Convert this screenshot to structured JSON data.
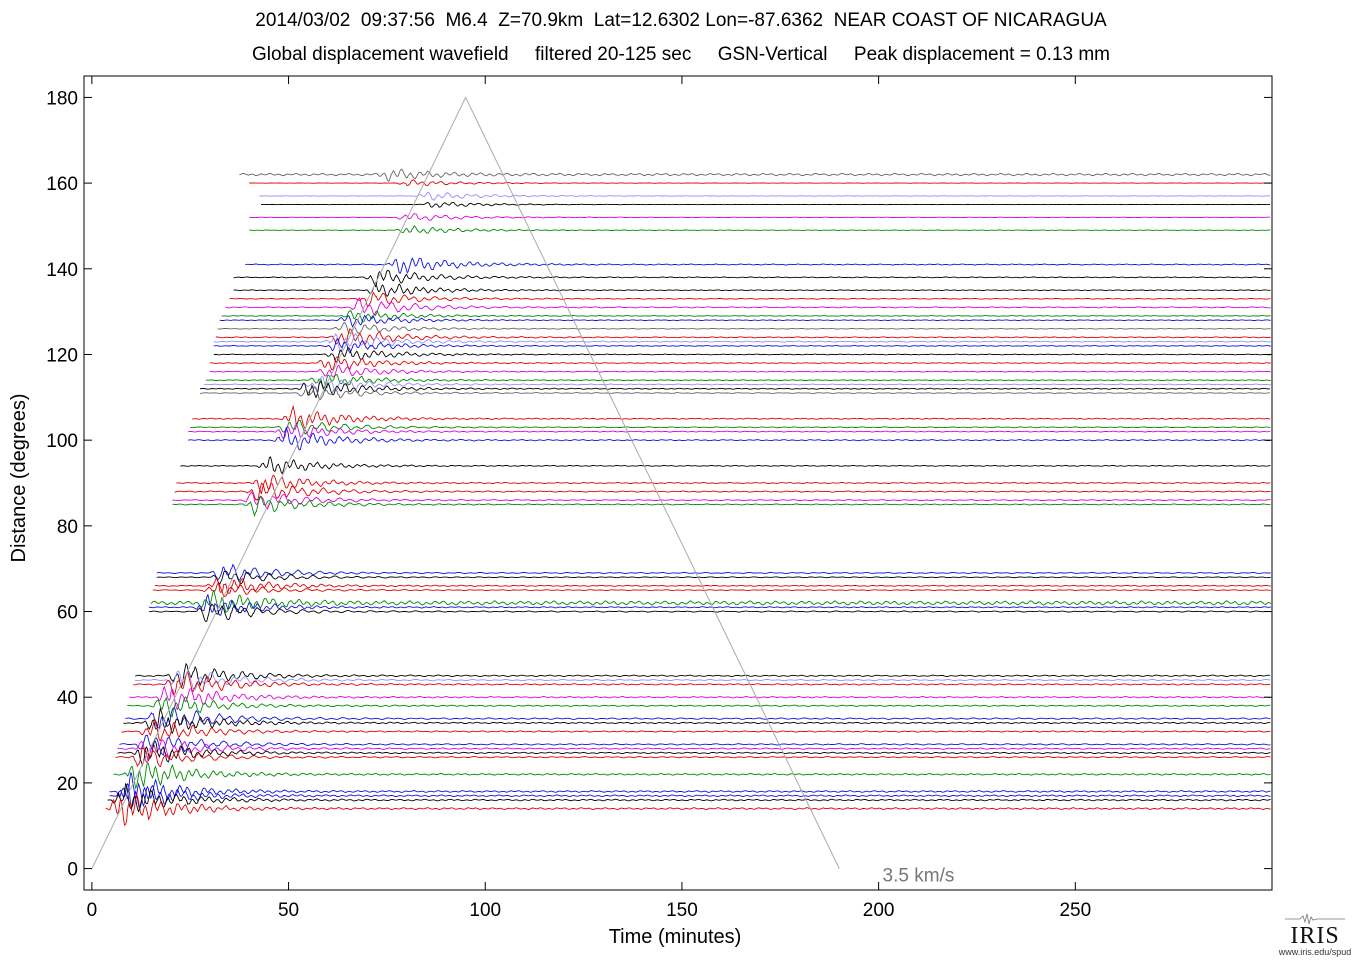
{
  "header": {
    "line1": "2014/03/02  09:37:56  M6.4  Z=70.9km  Lat=12.6302 Lon=-87.6362  NEAR COAST OF NICARAGUA",
    "line2": "Global displacement wavefield     filtered 20-125 sec     GSN-Vertical     Peak displacement = 0.13 mm"
  },
  "logo": {
    "text": "IRIS",
    "url": "www.iris.edu/spud"
  },
  "chart_data": {
    "type": "line",
    "title": "2014/03/02  09:37:56  M6.4  Z=70.9km  Lat=12.6302 Lon=-87.6362  NEAR COAST OF NICARAGUA",
    "subtitle": "Global displacement wavefield     filtered 20-125 sec     GSN-Vertical     Peak displacement = 0.13 mm",
    "xlabel": "Time (minutes)",
    "ylabel": "Distance (degrees)",
    "xlim": [
      -2,
      300
    ],
    "ylim": [
      -5,
      185
    ],
    "xticks": [
      0,
      50,
      100,
      150,
      200,
      250
    ],
    "yticks": [
      0,
      20,
      40,
      60,
      80,
      100,
      120,
      140,
      160,
      180
    ],
    "grid": false,
    "velocity_line": {
      "label": "3.5 km/s",
      "points": [
        [
          0,
          0
        ],
        [
          95,
          180
        ],
        [
          190,
          0
        ]
      ],
      "color": "#aaaaaa"
    },
    "series_colors": [
      "#000000",
      "#e00000",
      "#1010e0",
      "#008800",
      "#e000e0",
      "#9090ff",
      "#666666"
    ],
    "traces": [
      {
        "distance": 162,
        "color": "#666666",
        "arrival": 75,
        "amp": 5,
        "noise": 1.0
      },
      {
        "distance": 160,
        "color": "#e00000",
        "arrival": 80,
        "amp": 3
      },
      {
        "distance": 157,
        "color": "#9090ff",
        "arrival": 85,
        "amp": 4
      },
      {
        "distance": 155,
        "color": "#000000",
        "arrival": 86,
        "amp": 3
      },
      {
        "distance": 152,
        "color": "#e000e0",
        "arrival": 80,
        "amp": 4
      },
      {
        "distance": 149,
        "color": "#008800",
        "arrival": 80,
        "amp": 4
      },
      {
        "distance": 141,
        "color": "#1010e0",
        "arrival": 78,
        "amp": 9
      },
      {
        "distance": 138,
        "color": "#000000",
        "arrival": 72,
        "amp": 8
      },
      {
        "distance": 135,
        "color": "#000000",
        "arrival": 72,
        "amp": 7
      },
      {
        "distance": 133,
        "color": "#e00000",
        "arrival": 70,
        "amp": 7
      },
      {
        "distance": 131,
        "color": "#e000e0",
        "arrival": 68,
        "amp": 9
      },
      {
        "distance": 129,
        "color": "#008800",
        "arrival": 66,
        "amp": 6
      },
      {
        "distance": 128,
        "color": "#1010e0",
        "arrival": 65,
        "amp": 6
      },
      {
        "distance": 126,
        "color": "#666666",
        "arrival": 64,
        "amp": 6
      },
      {
        "distance": 124,
        "color": "#e00000",
        "arrival": 63,
        "amp": 9
      },
      {
        "distance": 123,
        "color": "#9090ff",
        "arrival": 62,
        "amp": 9
      },
      {
        "distance": 122,
        "color": "#1010e0",
        "arrival": 62,
        "amp": 7
      },
      {
        "distance": 120,
        "color": "#000000",
        "arrival": 62,
        "amp": 7
      },
      {
        "distance": 118,
        "color": "#e00000",
        "arrival": 60,
        "amp": 7
      },
      {
        "distance": 116,
        "color": "#e000e0",
        "arrival": 60,
        "amp": 7
      },
      {
        "distance": 114,
        "color": "#008800",
        "arrival": 58,
        "amp": 7
      },
      {
        "distance": 113,
        "color": "#9090ff",
        "arrival": 57,
        "amp": 8
      },
      {
        "distance": 112,
        "color": "#000000",
        "arrival": 55,
        "amp": 9
      },
      {
        "distance": 111,
        "color": "#666666",
        "arrival": 55,
        "amp": 7
      },
      {
        "distance": 105,
        "color": "#e00000",
        "arrival": 51,
        "amp": 10
      },
      {
        "distance": 103,
        "color": "#008800",
        "arrival": 50,
        "amp": 8
      },
      {
        "distance": 102,
        "color": "#e000e0",
        "arrival": 49,
        "amp": 8
      },
      {
        "distance": 100,
        "color": "#1010e0",
        "arrival": 49,
        "amp": 10
      },
      {
        "distance": 94,
        "color": "#000000",
        "arrival": 45,
        "amp": 8
      },
      {
        "distance": 90,
        "color": "#e00000",
        "arrival": 43,
        "amp": 9
      },
      {
        "distance": 88,
        "color": "#e00000",
        "arrival": 42,
        "amp": 10
      },
      {
        "distance": 86,
        "color": "#e000e0",
        "arrival": 41,
        "amp": 9
      },
      {
        "distance": 85,
        "color": "#008800",
        "arrival": 41,
        "amp": 9
      },
      {
        "distance": 69,
        "color": "#1010e0",
        "arrival": 33,
        "amp": 9
      },
      {
        "distance": 68,
        "color": "#000000",
        "arrival": 33,
        "amp": 8
      },
      {
        "distance": 66,
        "color": "#e00000",
        "arrival": 32,
        "amp": 9
      },
      {
        "distance": 65,
        "color": "#e00000",
        "arrival": 31,
        "amp": 7
      },
      {
        "distance": 62,
        "color": "#008800",
        "arrival": 30,
        "amp": 9,
        "noise": 1.0
      },
      {
        "distance": 61,
        "color": "#1010e0",
        "arrival": 29,
        "amp": 10
      },
      {
        "distance": 60,
        "color": "#000000",
        "arrival": 29,
        "amp": 10
      },
      {
        "distance": 45,
        "color": "#000000",
        "arrival": 22,
        "amp": 12
      },
      {
        "distance": 44,
        "color": "#9090ff",
        "arrival": 22,
        "amp": 11
      },
      {
        "distance": 43,
        "color": "#e00000",
        "arrival": 21,
        "amp": 12
      },
      {
        "distance": 40,
        "color": "#e000e0",
        "arrival": 19,
        "amp": 12
      },
      {
        "distance": 38,
        "color": "#008800",
        "arrival": 18,
        "amp": 11
      },
      {
        "distance": 35,
        "color": "#1010e0",
        "arrival": 17,
        "amp": 13
      },
      {
        "distance": 34,
        "color": "#000000",
        "arrival": 16,
        "amp": 12
      },
      {
        "distance": 32,
        "color": "#e00000",
        "arrival": 15,
        "amp": 11
      },
      {
        "distance": 29,
        "color": "#1010e0",
        "arrival": 14,
        "amp": 12
      },
      {
        "distance": 28,
        "color": "#e000e0",
        "arrival": 13,
        "amp": 12
      },
      {
        "distance": 27,
        "color": "#000000",
        "arrival": 13,
        "amp": 12
      },
      {
        "distance": 26,
        "color": "#e00000",
        "arrival": 12,
        "amp": 11
      },
      {
        "distance": 22,
        "color": "#008800",
        "arrival": 11,
        "amp": 14
      },
      {
        "distance": 18,
        "color": "#1010e0",
        "arrival": 9,
        "amp": 15
      },
      {
        "distance": 17,
        "color": "#1010e0",
        "arrival": 9,
        "amp": 14
      },
      {
        "distance": 16,
        "color": "#000000",
        "arrival": 8,
        "amp": 14
      },
      {
        "distance": 14,
        "color": "#e00000",
        "arrival": 7,
        "amp": 16
      }
    ]
  }
}
